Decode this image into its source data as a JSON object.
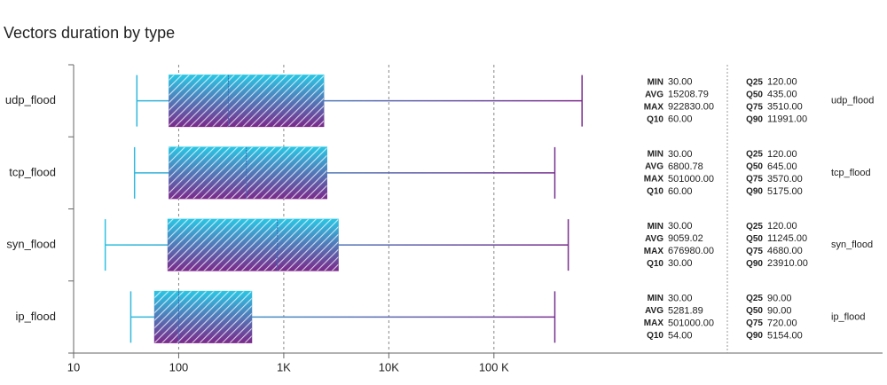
{
  "chart_data": {
    "type": "boxplot",
    "title": "Vectors duration by type",
    "x_scale": "log",
    "xlim": [
      10,
      500000000
    ],
    "xticks": [
      10,
      100,
      {
        "value": 1000,
        "label": "1K"
      },
      {
        "value": 10000,
        "label": "10K"
      },
      {
        "value": 100000,
        "label": "100 K"
      }
    ],
    "grid": true,
    "color_start": "#29c6e4",
    "color_end": "#7a2a8c",
    "categories": [
      "udp_flood",
      "tcp_flood",
      "syn_flood",
      "ip_flood"
    ],
    "boxes": [
      {
        "min": 40,
        "q1": 81,
        "median": 297,
        "q3": 2400,
        "max": 690000
      },
      {
        "min": 38,
        "q1": 81,
        "median": 440,
        "q3": 2570,
        "max": 380000
      },
      {
        "min": 20,
        "q1": 79,
        "median": 870,
        "q3": 3300,
        "max": 510000
      },
      {
        "min": 35,
        "q1": 59,
        "median": 100,
        "q3": 495,
        "max": 380000
      }
    ],
    "stat_names": [
      "MIN",
      "AVG",
      "MAX",
      "Q10",
      "Q25",
      "Q50",
      "Q75",
      "Q90"
    ],
    "stats": [
      {
        "values": [
          30,
          15208.79,
          922830,
          60,
          120,
          435,
          3510,
          11991
        ],
        "value_labels": [
          "30.00",
          "15208.79",
          "922830.00",
          "60.00",
          "120.00",
          "435.00",
          "3510.00",
          "11991.00"
        ]
      },
      {
        "values": [
          30,
          6800.78,
          501000,
          60,
          120,
          645,
          3570,
          5175
        ],
        "value_labels": [
          "30.00",
          "6800.78",
          "501000.00",
          "60.00",
          "120.00",
          "645.00",
          "3570.00",
          "5175.00"
        ]
      },
      {
        "values": [
          30,
          9059.02,
          676980,
          30,
          120,
          11245,
          4680,
          23910
        ],
        "value_labels": [
          "30.00",
          "9059.02",
          "676980.00",
          "30.00",
          "120.00",
          "11245.00",
          "4680.00",
          "23910.00"
        ]
      },
      {
        "values": [
          30,
          5281.89,
          501000,
          54,
          90,
          90,
          720,
          5154
        ],
        "value_labels": [
          "30.00",
          "5281.89",
          "501000.00",
          "54.00",
          "90.00",
          "90.00",
          "720.00",
          "5154.00"
        ]
      }
    ]
  }
}
